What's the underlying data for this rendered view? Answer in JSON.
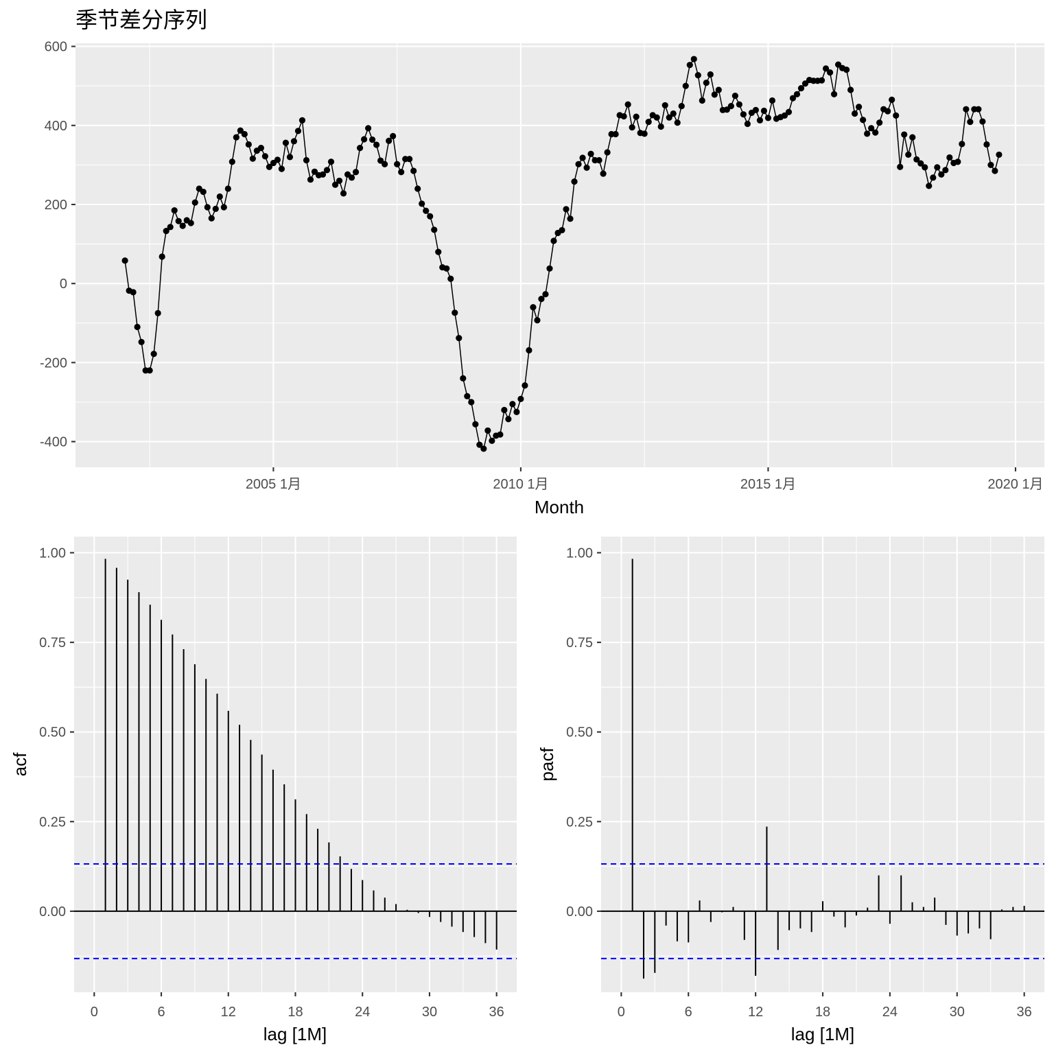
{
  "chart_data": [
    {
      "type": "line",
      "title": "季节差分序列",
      "xlabel": "Month",
      "ylabel": "",
      "x_tick_labels": [
        "2005 1月",
        "2010 1月",
        "2015 1月",
        "2020 1月"
      ],
      "y_tick_labels": [
        "-400",
        "-200",
        "0",
        "200",
        "400",
        "600"
      ],
      "ylim": [
        -465,
        608
      ],
      "xlim": [
        "2001-01",
        "2020-08"
      ],
      "grid": true,
      "points_marked": true,
      "x_start": "2002-01",
      "x_step": "1 month",
      "values": [
        58,
        -18,
        -22,
        -110,
        -148,
        -220,
        -220,
        -178,
        -75,
        68,
        133,
        143,
        185,
        158,
        146,
        160,
        153,
        205,
        240,
        232,
        193,
        165,
        189,
        220,
        193,
        240,
        308,
        370,
        387,
        378,
        352,
        316,
        336,
        343,
        322,
        295,
        305,
        313,
        290,
        356,
        320,
        360,
        386,
        413,
        312,
        263,
        283,
        274,
        276,
        287,
        308,
        250,
        260,
        228,
        276,
        268,
        282,
        343,
        365,
        393,
        364,
        351,
        311,
        302,
        361,
        373,
        302,
        282,
        315,
        315,
        285,
        240,
        202,
        184,
        170,
        136,
        80,
        41,
        38,
        12,
        -74,
        -138,
        -240,
        -285,
        -300,
        -356,
        -408,
        -418,
        -372,
        -398,
        -385,
        -382,
        -320,
        -343,
        -305,
        -325,
        -292,
        -258,
        -169,
        -60,
        -93,
        -39,
        -27,
        38,
        108,
        128,
        135,
        188,
        164,
        258,
        302,
        318,
        293,
        328,
        312,
        312,
        278,
        332,
        378,
        378,
        426,
        423,
        453,
        395,
        422,
        381,
        379,
        409,
        426,
        420,
        397,
        451,
        420,
        430,
        407,
        449,
        500,
        553,
        568,
        527,
        463,
        508,
        529,
        478,
        490,
        439,
        440,
        449,
        475,
        453,
        428,
        404,
        432,
        439,
        413,
        437,
        419,
        463,
        417,
        421,
        425,
        434,
        469,
        479,
        494,
        506,
        515,
        513,
        513,
        514,
        544,
        534,
        479,
        554,
        545,
        541,
        490,
        430,
        447,
        414,
        379,
        393,
        382,
        407,
        441,
        436,
        465,
        425,
        295,
        377,
        326,
        370,
        314,
        304,
        294,
        247,
        268,
        294,
        276,
        287,
        319,
        305,
        308,
        353,
        441,
        409,
        441,
        441,
        410,
        352,
        300,
        285,
        326
      ]
    },
    {
      "type": "bar",
      "xlabel": "lag [1M]",
      "ylabel": "acf",
      "x_ticks": [
        0,
        6,
        12,
        18,
        24,
        30,
        36
      ],
      "y_tick_labels": [
        "0.00",
        "0.25",
        "0.50",
        "0.75",
        "1.00"
      ],
      "xlim": [
        -1.8,
        37.8
      ],
      "ylim": [
        -0.226,
        1.045
      ],
      "ci": 0.132,
      "lags": [
        1,
        2,
        3,
        4,
        5,
        6,
        7,
        8,
        9,
        10,
        11,
        12,
        13,
        14,
        15,
        16,
        17,
        18,
        19,
        20,
        21,
        22,
        23,
        24,
        25,
        26,
        27,
        28,
        29,
        30,
        31,
        32,
        33,
        34,
        35,
        36
      ],
      "values": [
        0.983,
        0.958,
        0.925,
        0.89,
        0.855,
        0.813,
        0.772,
        0.731,
        0.689,
        0.648,
        0.607,
        0.559,
        0.52,
        0.478,
        0.437,
        0.395,
        0.354,
        0.312,
        0.271,
        0.23,
        0.192,
        0.153,
        0.118,
        0.087,
        0.058,
        0.038,
        0.02,
        0.004,
        -0.005,
        -0.016,
        -0.03,
        -0.043,
        -0.058,
        -0.072,
        -0.089,
        -0.107
      ]
    },
    {
      "type": "bar",
      "xlabel": "lag [1M]",
      "ylabel": "pacf",
      "x_ticks": [
        0,
        6,
        12,
        18,
        24,
        30,
        36
      ],
      "y_tick_labels": [
        "0.00",
        "0.25",
        "0.50",
        "0.75",
        "1.00"
      ],
      "xlim": [
        -1.8,
        37.8
      ],
      "ylim": [
        -0.226,
        1.045
      ],
      "ci": 0.132,
      "lags": [
        1,
        2,
        3,
        4,
        5,
        6,
        7,
        8,
        9,
        10,
        11,
        12,
        13,
        14,
        15,
        16,
        17,
        18,
        19,
        20,
        21,
        22,
        23,
        24,
        25,
        26,
        27,
        28,
        29,
        30,
        31,
        32,
        33,
        34,
        35,
        36
      ],
      "values": [
        0.983,
        -0.188,
        -0.172,
        -0.04,
        -0.084,
        -0.087,
        0.03,
        -0.03,
        -0.003,
        0.012,
        -0.08,
        -0.18,
        0.236,
        -0.108,
        -0.053,
        -0.048,
        -0.058,
        0.028,
        -0.015,
        -0.045,
        -0.012,
        0.01,
        0.1,
        -0.035,
        0.1,
        0.025,
        0.012,
        0.038,
        -0.038,
        -0.068,
        -0.062,
        -0.048,
        -0.078,
        0.005,
        0.012,
        0.015
      ]
    }
  ]
}
